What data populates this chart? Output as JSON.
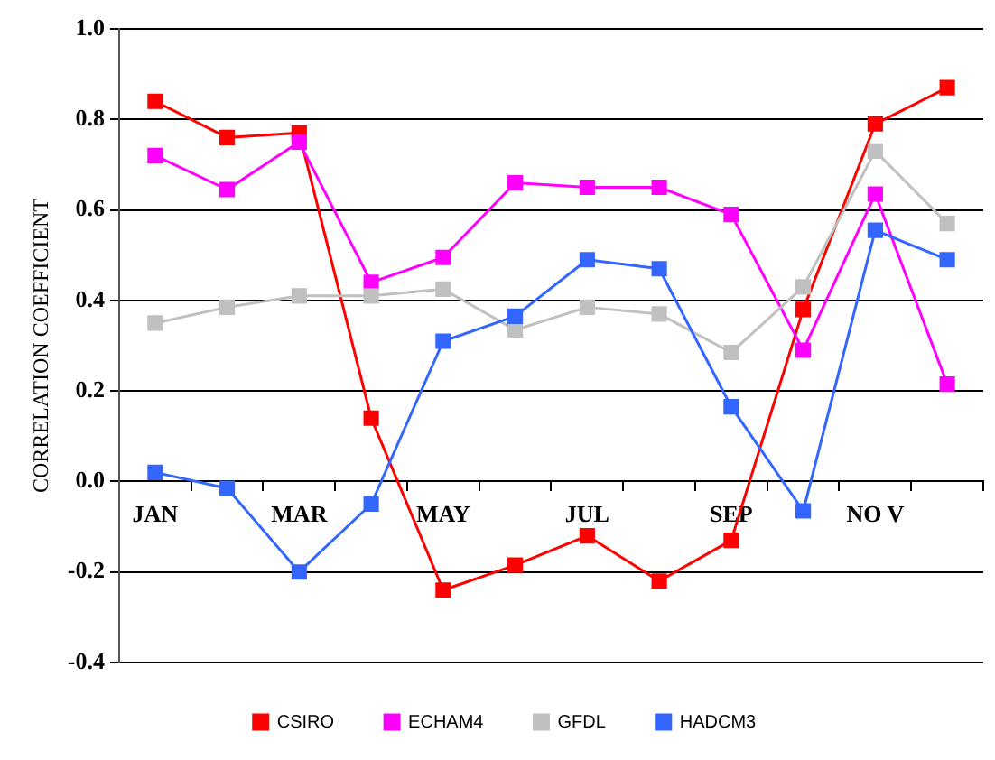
{
  "chart_data": {
    "type": "line",
    "ylabel": "CORRELATION COEFFICIENT",
    "categories": [
      "JAN",
      null,
      "MAR",
      null,
      "MAY",
      null,
      "JUL",
      null,
      "SEP",
      null,
      "NO V",
      null
    ],
    "series": [
      {
        "name": "CSIRO",
        "color": "#ff0000",
        "values": [
          0.84,
          0.76,
          0.77,
          0.14,
          -0.24,
          -0.185,
          -0.12,
          -0.22,
          -0.13,
          0.38,
          0.79,
          0.87
        ]
      },
      {
        "name": "ECHAM4",
        "color": "#ff00ff",
        "values": [
          0.72,
          0.645,
          0.75,
          0.44,
          0.495,
          0.66,
          0.65,
          0.65,
          0.59,
          0.29,
          0.635,
          0.215
        ]
      },
      {
        "name": "GFDL",
        "color": "#c0c0c0",
        "values": [
          0.35,
          0.385,
          0.41,
          0.41,
          0.425,
          0.335,
          0.385,
          0.37,
          0.285,
          0.43,
          0.73,
          0.57
        ]
      },
      {
        "name": "HADCM3",
        "color": "#3366ff",
        "values": [
          0.02,
          -0.015,
          -0.2,
          -0.05,
          0.31,
          0.365,
          0.49,
          0.47,
          0.165,
          -0.065,
          0.555,
          0.49
        ]
      }
    ],
    "ylim": [
      -0.4,
      1.0
    ],
    "yticks": [
      {
        "value": -0.4,
        "label": "-0.4"
      },
      {
        "value": -0.2,
        "label": "-0.2"
      },
      {
        "value": 0,
        "label": "0.0"
      },
      {
        "value": 0.2,
        "label": "0.2"
      },
      {
        "value": 0.4,
        "label": "0.4"
      },
      {
        "value": 0.6,
        "label": "0.6"
      },
      {
        "value": 0.8,
        "label": "0.8"
      },
      {
        "value": 1.0,
        "label": "1.0"
      }
    ],
    "grid": "y",
    "legend": "bottom",
    "marker": "square",
    "line_style": "solid"
  }
}
